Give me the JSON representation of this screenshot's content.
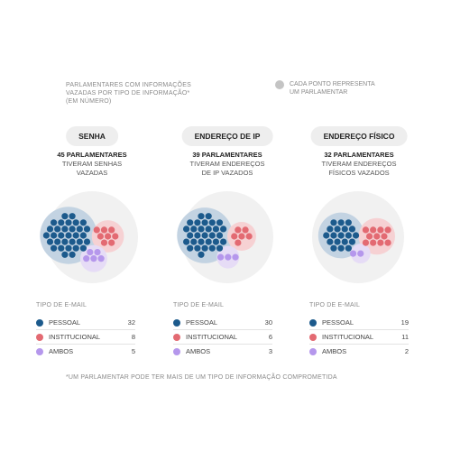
{
  "intro_text": "PARLAMENTARES COM INFORMAÇÕES\nVAZADAS POR TIPO DE INFORMAÇÃO*\n(EM NÚMERO)",
  "legend_note": "CADA PONTO REPRESENTA\nUM PARLAMENTAR",
  "footnote": "*UM PARLAMENTAR PODE TER MAIS DE UM TIPO DE INFORMAÇÃO COMPROMETIDA",
  "colors": {
    "pessoal": "#1c5a8c",
    "institucional": "#e36a72",
    "ambos": "#b597ec",
    "pessoal_halo": "#c3d3e2",
    "institucional_halo": "#f6d1d3",
    "ambos_halo": "#e6dcf6",
    "outer_circle": "#f1f1f1",
    "pill": "#eeeeee"
  },
  "email_table_title": "TIPO DE E-MAIL",
  "chart_data": [
    {
      "type": "dot-cluster",
      "title": "SENHA",
      "total_label": "45 PARLAMENTARES",
      "description": "TIVERAM SENHAS\nVAZADAS",
      "total": 45,
      "categories": [
        "PESSOAL",
        "INSTITUCIONAL",
        "AMBOS"
      ],
      "values": [
        32,
        8,
        5
      ]
    },
    {
      "type": "dot-cluster",
      "title": "ENDEREÇO DE IP",
      "total_label": "39 PARLAMENTARES",
      "description": "TIVERAM ENDEREÇOS\nDE IP VAZADOS",
      "total": 39,
      "categories": [
        "PESSOAL",
        "INSTITUCIONAL",
        "AMBOS"
      ],
      "values": [
        30,
        6,
        3
      ]
    },
    {
      "type": "dot-cluster",
      "title": "ENDEREÇO FÍSICO",
      "total_label": "32 PARLAMENTARES",
      "description": "TIVERAM ENDEREÇOS\nFÍSICOS VAZADOS",
      "total": 32,
      "categories": [
        "PESSOAL",
        "INSTITUCIONAL",
        "AMBOS"
      ],
      "values": [
        19,
        11,
        2
      ]
    }
  ]
}
